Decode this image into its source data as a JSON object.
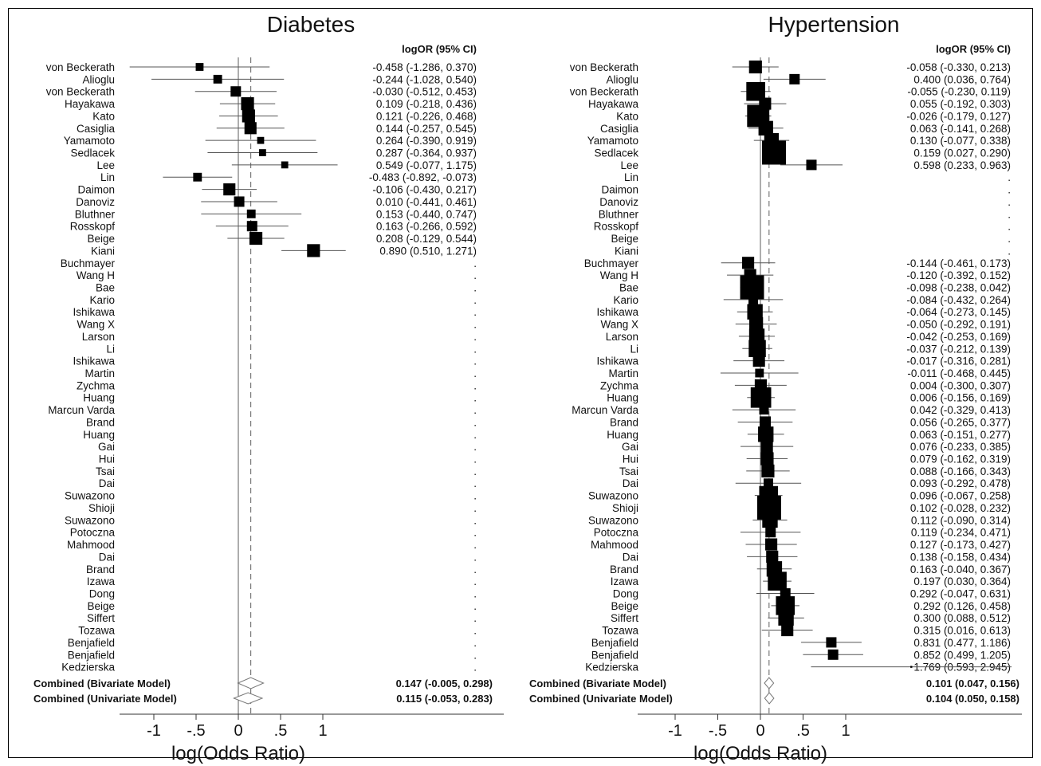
{
  "chart_data": [
    {
      "type": "forest",
      "title": "Diabetes",
      "header": "logOR (95% CI)",
      "xlabel": "log(Odds Ratio)",
      "xticks": [
        "-1",
        "-.5",
        "0",
        ".5",
        "1"
      ],
      "xlim": [
        -1.3,
        3.05
      ],
      "reference_dashed": 0.147,
      "studies": [
        {
          "name": "von Beckerath",
          "est": -0.458,
          "lo": -1.286,
          "hi": 0.37,
          "ci": "-0.458 (-1.286, 0.370)",
          "w": 0.7
        },
        {
          "name": "Alioglu",
          "est": -0.244,
          "lo": -1.028,
          "hi": 0.54,
          "ci": "-0.244 (-1.028, 0.540)",
          "w": 0.8
        },
        {
          "name": "von Beckerath",
          "est": -0.03,
          "lo": -0.512,
          "hi": 0.453,
          "ci": "-0.030 (-0.512, 0.453)",
          "w": 1.0
        },
        {
          "name": "Hayakawa",
          "est": 0.109,
          "lo": -0.218,
          "hi": 0.436,
          "ci": "0.109 (-0.218, 0.436)",
          "w": 1.3
        },
        {
          "name": "Kato",
          "est": 0.121,
          "lo": -0.226,
          "hi": 0.468,
          "ci": "0.121 (-0.226, 0.468)",
          "w": 1.3
        },
        {
          "name": "Casiglia",
          "est": 0.144,
          "lo": -0.257,
          "hi": 0.545,
          "ci": "0.144 (-0.257, 0.545)",
          "w": 1.2
        },
        {
          "name": "Yamamoto",
          "est": 0.264,
          "lo": -0.39,
          "hi": 0.919,
          "ci": "0.264 (-0.390, 0.919)",
          "w": 0.6
        },
        {
          "name": "Sedlacek",
          "est": 0.287,
          "lo": -0.364,
          "hi": 0.937,
          "ci": "0.287 (-0.364, 0.937)",
          "w": 0.6
        },
        {
          "name": "Lee",
          "est": 0.549,
          "lo": -0.077,
          "hi": 1.175,
          "ci": "0.549 (-0.077, 1.175)",
          "w": 0.6
        },
        {
          "name": "Lin",
          "est": -0.483,
          "lo": -0.892,
          "hi": -0.073,
          "ci": "-0.483 (-0.892, -0.073)",
          "w": 0.8
        },
        {
          "name": "Daimon",
          "est": -0.106,
          "lo": -0.43,
          "hi": 0.217,
          "ci": "-0.106 (-0.430, 0.217)",
          "w": 1.2
        },
        {
          "name": "Danoviz",
          "est": 0.01,
          "lo": -0.441,
          "hi": 0.461,
          "ci": "0.010 (-0.441, 0.461)",
          "w": 1.0
        },
        {
          "name": "Bluthner",
          "est": 0.153,
          "lo": -0.44,
          "hi": 0.747,
          "ci": "0.153 (-0.440, 0.747)",
          "w": 0.8
        },
        {
          "name": "Rosskopf",
          "est": 0.163,
          "lo": -0.266,
          "hi": 0.592,
          "ci": "0.163 (-0.266, 0.592)",
          "w": 1.0
        },
        {
          "name": "Beige",
          "est": 0.208,
          "lo": -0.129,
          "hi": 0.544,
          "ci": "0.208 (-0.129, 0.544)",
          "w": 1.3
        },
        {
          "name": "Kiani",
          "est": 0.89,
          "lo": 0.51,
          "hi": 1.271,
          "ci": "0.890 (0.510, 1.271)",
          "w": 1.3
        },
        {
          "name": "Buchmayer",
          "ci": "."
        },
        {
          "name": "Wang H",
          "ci": "."
        },
        {
          "name": "Bae",
          "ci": "."
        },
        {
          "name": "Kario",
          "ci": "."
        },
        {
          "name": "Ishikawa",
          "ci": "."
        },
        {
          "name": "Wang X",
          "ci": "."
        },
        {
          "name": "Larson",
          "ci": "."
        },
        {
          "name": "Li",
          "ci": "."
        },
        {
          "name": "Ishikawa",
          "ci": "."
        },
        {
          "name": "Martin",
          "ci": "."
        },
        {
          "name": "Zychma",
          "ci": "."
        },
        {
          "name": "Huang",
          "ci": "."
        },
        {
          "name": "Marcun Varda",
          "ci": "."
        },
        {
          "name": "Brand",
          "ci": "."
        },
        {
          "name": "Huang",
          "ci": "."
        },
        {
          "name": "Gai",
          "ci": "."
        },
        {
          "name": "Hui",
          "ci": "."
        },
        {
          "name": "Tsai",
          "ci": "."
        },
        {
          "name": "Dai",
          "ci": "."
        },
        {
          "name": "Suwazono",
          "ci": "."
        },
        {
          "name": "Shioji",
          "ci": "."
        },
        {
          "name": "Suwazono",
          "ci": "."
        },
        {
          "name": "Potoczna",
          "ci": "."
        },
        {
          "name": "Mahmood",
          "ci": "."
        },
        {
          "name": "Dai",
          "ci": "."
        },
        {
          "name": "Brand",
          "ci": "."
        },
        {
          "name": "Izawa",
          "ci": "."
        },
        {
          "name": "Dong",
          "ci": "."
        },
        {
          "name": "Beige",
          "ci": "."
        },
        {
          "name": "Siffert",
          "ci": "."
        },
        {
          "name": "Tozawa",
          "ci": "."
        },
        {
          "name": "Benjafield",
          "ci": "."
        },
        {
          "name": "Benjafield",
          "ci": "."
        },
        {
          "name": "Kedzierska",
          "ci": "."
        }
      ],
      "combined": [
        {
          "name": "Combined (Bivariate Model)",
          "est": 0.147,
          "lo": -0.005,
          "hi": 0.298,
          "ci": "0.147 (-0.005, 0.298)"
        },
        {
          "name": "Combined (Univariate Model)",
          "est": 0.115,
          "lo": -0.053,
          "hi": 0.283,
          "ci": "0.115 (-0.053, 0.283)"
        }
      ]
    },
    {
      "type": "forest",
      "title": "Hypertension",
      "header": "logOR (95% CI)",
      "xlabel": "log(Odds Ratio)",
      "xticks": [
        "-1",
        "-.5",
        "0",
        ".5",
        "1"
      ],
      "xlim": [
        -1.3,
        3.05
      ],
      "reference_dashed": 0.101,
      "studies": [
        {
          "name": "von Beckerath",
          "est": -0.058,
          "lo": -0.33,
          "hi": 0.213,
          "ci": "-0.058 (-0.330, 0.213)",
          "w": 1.3
        },
        {
          "name": "Alioglu",
          "est": 0.4,
          "lo": 0.036,
          "hi": 0.764,
          "ci": "0.400 (0.036, 0.764)",
          "w": 1.0
        },
        {
          "name": "von Beckerath",
          "est": -0.055,
          "lo": -0.23,
          "hi": 0.119,
          "ci": "-0.055 (-0.230, 0.119)",
          "w": 2.0
        },
        {
          "name": "Hayakawa",
          "est": 0.055,
          "lo": -0.192,
          "hi": 0.303,
          "ci": "0.055 (-0.192, 0.303)",
          "w": 1.2
        },
        {
          "name": "Kato",
          "est": -0.026,
          "lo": -0.179,
          "hi": 0.127,
          "ci": "-0.026 (-0.179, 0.127)",
          "w": 2.4
        },
        {
          "name": "Casiglia",
          "est": 0.063,
          "lo": -0.141,
          "hi": 0.268,
          "ci": "0.063 (-0.141, 0.268)",
          "w": 1.5
        },
        {
          "name": "Yamamoto",
          "est": 0.13,
          "lo": -0.077,
          "hi": 0.338,
          "ci": "0.130 (-0.077, 0.338)",
          "w": 1.5
        },
        {
          "name": "Sedlacek",
          "est": 0.159,
          "lo": 0.027,
          "hi": 0.29,
          "ci": "0.159 (0.027, 0.290)",
          "w": 2.6
        },
        {
          "name": "Lee",
          "est": 0.598,
          "lo": 0.233,
          "hi": 0.963,
          "ci": "0.598 (0.233, 0.963)",
          "w": 1.0
        },
        {
          "name": "Lin",
          "ci": "."
        },
        {
          "name": "Daimon",
          "ci": "."
        },
        {
          "name": "Danoviz",
          "ci": "."
        },
        {
          "name": "Bluthner",
          "ci": "."
        },
        {
          "name": "Rosskopf",
          "ci": "."
        },
        {
          "name": "Beige",
          "ci": "."
        },
        {
          "name": "Kiani",
          "ci": "."
        },
        {
          "name": "Buchmayer",
          "est": -0.144,
          "lo": -0.461,
          "hi": 0.173,
          "ci": "-0.144 (-0.461, 0.173)",
          "w": 1.2
        },
        {
          "name": "Wang H",
          "est": -0.12,
          "lo": -0.392,
          "hi": 0.152,
          "ci": "-0.120 (-0.392, 0.152)",
          "w": 1.2
        },
        {
          "name": "Bae",
          "est": -0.098,
          "lo": -0.238,
          "hi": 0.042,
          "ci": "-0.098 (-0.238, 0.042)",
          "w": 2.6
        },
        {
          "name": "Kario",
          "est": -0.084,
          "lo": -0.432,
          "hi": 0.264,
          "ci": "-0.084 (-0.432, 0.264)",
          "w": 0.9
        },
        {
          "name": "Ishikawa",
          "est": -0.064,
          "lo": -0.273,
          "hi": 0.145,
          "ci": "-0.064 (-0.273, 0.145)",
          "w": 1.6
        },
        {
          "name": "Wang X",
          "est": -0.05,
          "lo": -0.292,
          "hi": 0.191,
          "ci": "-0.050 (-0.292, 0.191)",
          "w": 1.4
        },
        {
          "name": "Larson",
          "est": -0.042,
          "lo": -0.253,
          "hi": 0.169,
          "ci": "-0.042 (-0.253, 0.169)",
          "w": 1.6
        },
        {
          "name": "Li",
          "est": -0.037,
          "lo": -0.212,
          "hi": 0.139,
          "ci": "-0.037 (-0.212, 0.139)",
          "w": 1.8
        },
        {
          "name": "Ishikawa",
          "est": -0.017,
          "lo": -0.316,
          "hi": 0.281,
          "ci": "-0.017 (-0.316, 0.281)",
          "w": 1.2
        },
        {
          "name": "Martin",
          "est": -0.011,
          "lo": -0.468,
          "hi": 0.445,
          "ci": "-0.011 (-0.468, 0.445)",
          "w": 0.8
        },
        {
          "name": "Zychma",
          "est": 0.004,
          "lo": -0.3,
          "hi": 0.307,
          "ci": "0.004 (-0.300, 0.307)",
          "w": 1.2
        },
        {
          "name": "Huang",
          "est": 0.006,
          "lo": -0.156,
          "hi": 0.169,
          "ci": "0.006 (-0.156, 0.169)",
          "w": 2.2
        },
        {
          "name": "Marcun Varda",
          "est": 0.042,
          "lo": -0.329,
          "hi": 0.413,
          "ci": "0.042 (-0.329, 0.413)",
          "w": 0.9
        },
        {
          "name": "Brand",
          "est": 0.056,
          "lo": -0.265,
          "hi": 0.377,
          "ci": "0.056 (-0.265, 0.377)",
          "w": 1.1
        },
        {
          "name": "Huang",
          "est": 0.063,
          "lo": -0.151,
          "hi": 0.277,
          "ci": "0.063 (-0.151, 0.277)",
          "w": 1.6
        },
        {
          "name": "Gai",
          "est": 0.076,
          "lo": -0.233,
          "hi": 0.385,
          "ci": "0.076 (-0.233, 0.385)",
          "w": 1.2
        },
        {
          "name": "Hui",
          "est": 0.079,
          "lo": -0.162,
          "hi": 0.319,
          "ci": "0.079 (-0.162, 0.319)",
          "w": 1.3
        },
        {
          "name": "Tsai",
          "est": 0.088,
          "lo": -0.166,
          "hi": 0.343,
          "ci": "0.088 (-0.166, 0.343)",
          "w": 1.3
        },
        {
          "name": "Dai",
          "est": 0.093,
          "lo": -0.292,
          "hi": 0.478,
          "ci": "0.093 (-0.292, 0.478)",
          "w": 0.9
        },
        {
          "name": "Suwazono",
          "est": 0.096,
          "lo": -0.067,
          "hi": 0.258,
          "ci": "0.096 (-0.067, 0.258)",
          "w": 2.0
        },
        {
          "name": "Shioji",
          "est": 0.102,
          "lo": -0.028,
          "hi": 0.232,
          "ci": "0.102 (-0.028, 0.232)",
          "w": 2.6
        },
        {
          "name": "Suwazono",
          "est": 0.112,
          "lo": -0.09,
          "hi": 0.314,
          "ci": "0.112 (-0.090, 0.314)",
          "w": 1.6
        },
        {
          "name": "Potoczna",
          "est": 0.119,
          "lo": -0.234,
          "hi": 0.471,
          "ci": "0.119 (-0.234, 0.471)",
          "w": 1.0
        },
        {
          "name": "Mahmood",
          "est": 0.127,
          "lo": -0.173,
          "hi": 0.427,
          "ci": "0.127 (-0.173, 0.427)",
          "w": 1.2
        },
        {
          "name": "Dai",
          "est": 0.138,
          "lo": -0.158,
          "hi": 0.434,
          "ci": "0.138 (-0.158, 0.434)",
          "w": 1.2
        },
        {
          "name": "Brand",
          "est": 0.163,
          "lo": -0.04,
          "hi": 0.367,
          "ci": "0.163 (-0.040, 0.367)",
          "w": 1.6
        },
        {
          "name": "Izawa",
          "est": 0.197,
          "lo": 0.03,
          "hi": 0.364,
          "ci": "0.197 (0.030, 0.364)",
          "w": 2.0
        },
        {
          "name": "Dong",
          "est": 0.292,
          "lo": -0.047,
          "hi": 0.631,
          "ci": "0.292 (-0.047, 0.631)",
          "w": 1.0
        },
        {
          "name": "Beige",
          "est": 0.292,
          "lo": 0.126,
          "hi": 0.458,
          "ci": "0.292 (0.126, 0.458)",
          "w": 2.0
        },
        {
          "name": "Siffert",
          "est": 0.3,
          "lo": 0.088,
          "hi": 0.512,
          "ci": "0.300 (0.088, 0.512)",
          "w": 1.6
        },
        {
          "name": "Tozawa",
          "est": 0.315,
          "lo": 0.016,
          "hi": 0.613,
          "ci": "0.315 (0.016, 0.613)",
          "w": 1.2
        },
        {
          "name": "Benjafield",
          "est": 0.831,
          "lo": 0.477,
          "hi": 1.186,
          "ci": "0.831 (0.477, 1.186)",
          "w": 1.0
        },
        {
          "name": "Benjafield",
          "est": 0.852,
          "lo": 0.499,
          "hi": 1.205,
          "ci": "0.852 (0.499, 1.205)",
          "w": 1.0
        },
        {
          "name": "Kedzierska",
          "est": 1.769,
          "lo": 0.593,
          "hi": 2.945,
          "ci": "1.769 (0.593, 2.945)",
          "w": 0.0
        }
      ],
      "combined": [
        {
          "name": "Combined (Bivariate Model)",
          "est": 0.101,
          "lo": 0.047,
          "hi": 0.156,
          "ci": "0.101 (0.047, 0.156)"
        },
        {
          "name": "Combined (Univariate Model)",
          "est": 0.104,
          "lo": 0.05,
          "hi": 0.158,
          "ci": "0.104 (0.050, 0.158)"
        }
      ]
    }
  ]
}
